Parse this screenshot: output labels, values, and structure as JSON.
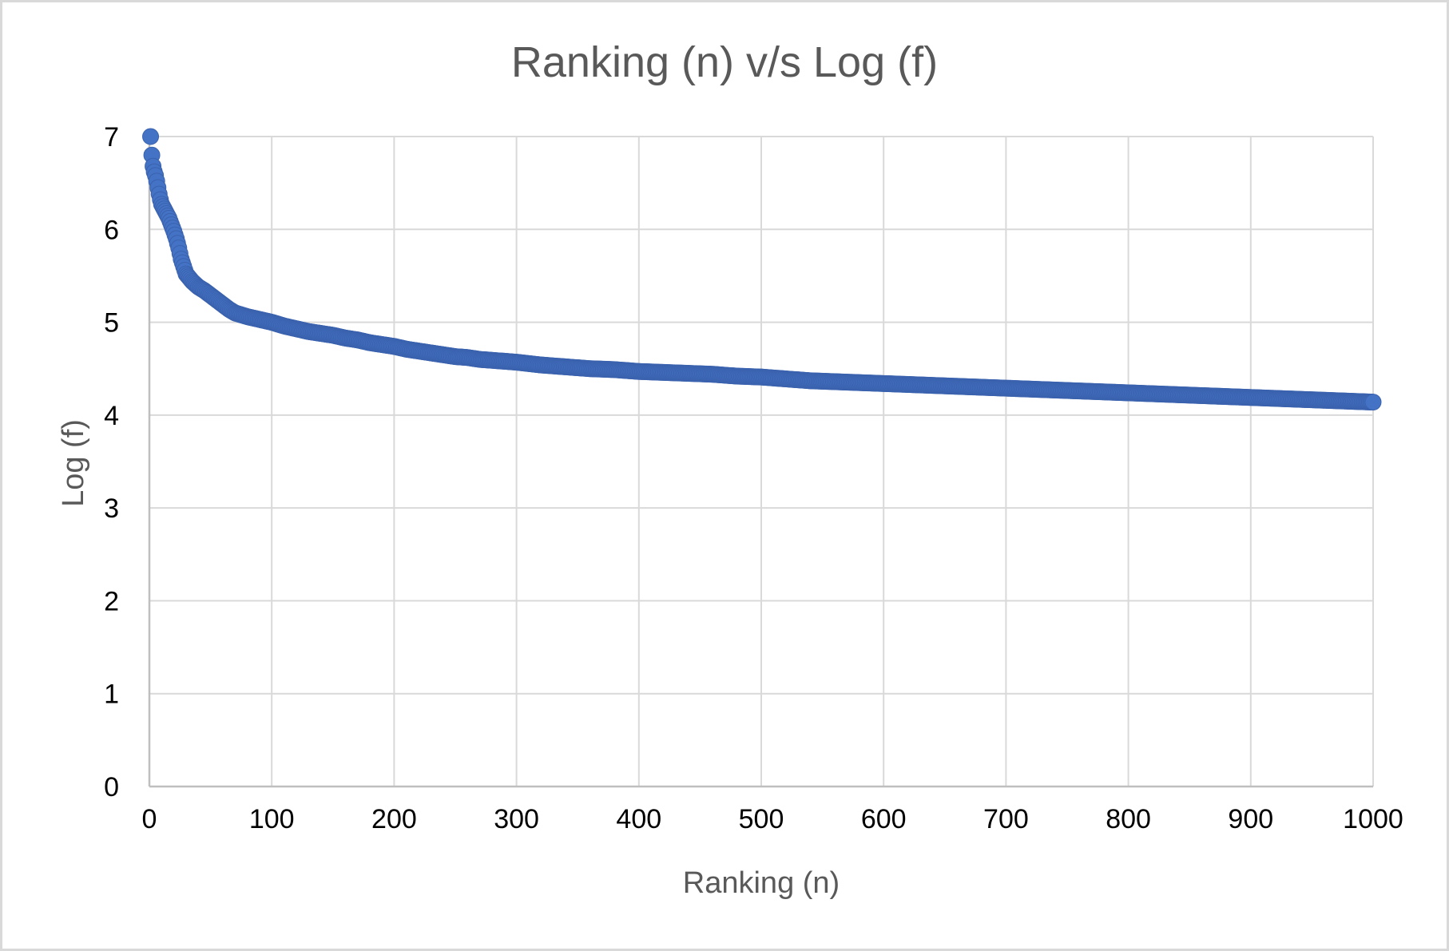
{
  "chart_data": {
    "type": "scatter",
    "title": "Ranking (n) v/s Log (f)",
    "xlabel": "Ranking (n)",
    "ylabel": "Log (f)",
    "xlim": [
      0,
      1000
    ],
    "ylim": [
      0,
      7
    ],
    "x_ticks": [
      "0",
      "100",
      "200",
      "300",
      "400",
      "500",
      "600",
      "700",
      "800",
      "900",
      "1000"
    ],
    "y_ticks": [
      "0",
      "1",
      "2",
      "3",
      "4",
      "5",
      "6",
      "7"
    ],
    "grid": true,
    "legend": "none",
    "marker_color": "#4472C4",
    "marker_edge_color": "#3A62AE",
    "series": [
      {
        "x": [
          1,
          2,
          3,
          4,
          5,
          6,
          7,
          8,
          9,
          10,
          12,
          14,
          16,
          18,
          20,
          22,
          24,
          26,
          28,
          30,
          35,
          40,
          45,
          50,
          55,
          60,
          65,
          70,
          80,
          90,
          100,
          110,
          120,
          130,
          140,
          150,
          160,
          170,
          180,
          190,
          200,
          210,
          220,
          230,
          240,
          250,
          260,
          270,
          280,
          290,
          300,
          320,
          340,
          360,
          380,
          400,
          420,
          440,
          460,
          480,
          500,
          520,
          540,
          560,
          580,
          600,
          620,
          640,
          660,
          680,
          700,
          720,
          740,
          760,
          780,
          800,
          820,
          840,
          860,
          880,
          900,
          920,
          940,
          960,
          980,
          1000
        ],
        "y": [
          7.0,
          6.8,
          6.68,
          6.62,
          6.58,
          6.52,
          6.45,
          6.38,
          6.32,
          6.27,
          6.22,
          6.17,
          6.12,
          6.05,
          5.98,
          5.9,
          5.8,
          5.68,
          5.6,
          5.52,
          5.44,
          5.38,
          5.34,
          5.29,
          5.24,
          5.19,
          5.14,
          5.1,
          5.06,
          5.03,
          5.0,
          4.96,
          4.93,
          4.9,
          4.88,
          4.86,
          4.83,
          4.81,
          4.78,
          4.76,
          4.74,
          4.71,
          4.69,
          4.67,
          4.65,
          4.63,
          4.62,
          4.6,
          4.59,
          4.58,
          4.57,
          4.54,
          4.52,
          4.5,
          4.49,
          4.47,
          4.46,
          4.45,
          4.44,
          4.42,
          4.41,
          4.39,
          4.37,
          4.36,
          4.35,
          4.34,
          4.33,
          4.32,
          4.31,
          4.3,
          4.29,
          4.28,
          4.27,
          4.26,
          4.25,
          4.24,
          4.23,
          4.22,
          4.21,
          4.2,
          4.19,
          4.18,
          4.17,
          4.16,
          4.15,
          4.14
        ]
      }
    ]
  }
}
